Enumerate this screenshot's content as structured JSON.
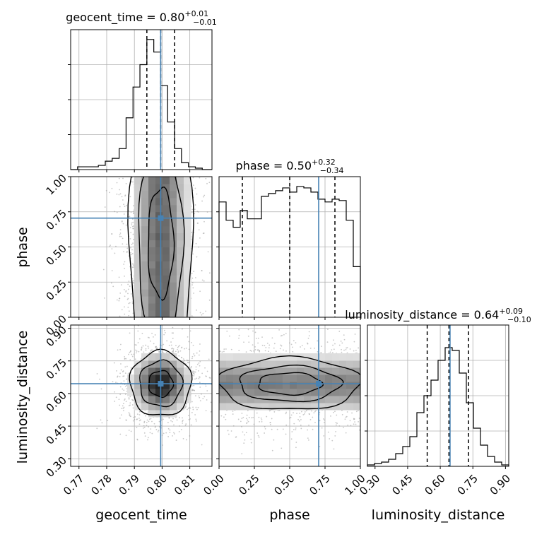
{
  "chart_data": {
    "type": "corner",
    "grid": true,
    "truth_color": "#4682b4",
    "parameters": [
      {
        "name": "geocent_time",
        "median": "0.80",
        "plus": "+0.01",
        "minus": "−0.01",
        "range": [
          0.767,
          0.818
        ],
        "ticks": [
          0.77,
          0.78,
          0.79,
          0.8,
          0.81
        ],
        "tick_labels": [
          "0.77",
          "0.78",
          "0.79",
          "0.80",
          "0.81"
        ],
        "truth": 0.7995,
        "quantiles": [
          0.7945,
          0.7995,
          0.8045
        ]
      },
      {
        "name": "phase",
        "median": "0.50",
        "plus": "+0.32",
        "minus": "−0.34",
        "range": [
          0.0,
          1.0
        ],
        "ticks": [
          0.0,
          0.25,
          0.5,
          0.75,
          1.0
        ],
        "tick_labels": [
          "0.00",
          "0.25",
          "0.50",
          "0.75",
          "1.00"
        ],
        "truth": 0.705,
        "quantiles": [
          0.165,
          0.5,
          0.82
        ]
      },
      {
        "name": "luminosity_distance",
        "median": "0.64",
        "plus": "+0.09",
        "minus": "−0.10",
        "range": [
          0.265,
          0.915
        ],
        "ticks": [
          0.3,
          0.45,
          0.6,
          0.75,
          0.9
        ],
        "tick_labels": [
          "0.30",
          "0.45",
          "0.60",
          "0.75",
          "0.90"
        ],
        "truth": 0.645,
        "quantiles": [
          0.54,
          0.64,
          0.73
        ]
      }
    ],
    "titles": [
      "geocent_time = 0.80",
      "phase = 0.50",
      "luminosity_distance = 0.64"
    ],
    "axis_labels": {
      "x": [
        "geocent_time",
        "phase",
        "luminosity_distance"
      ],
      "y": [
        "phase",
        "luminosity_distance"
      ]
    },
    "histograms": [
      {
        "param": "geocent_time",
        "bins": [
          0.767,
          0.7695,
          0.772,
          0.7745,
          0.777,
          0.7795,
          0.782,
          0.7845,
          0.787,
          0.7895,
          0.792,
          0.7945,
          0.797,
          0.7995,
          0.802,
          0.8045,
          0.807,
          0.8095,
          0.812,
          0.8145,
          0.818
        ],
        "counts": [
          0,
          0.02,
          0.02,
          0.02,
          0.03,
          0.06,
          0.08,
          0.15,
          0.37,
          0.59,
          0.75,
          0.93,
          0.84,
          0.6,
          0.34,
          0.15,
          0.05,
          0.02,
          0.01,
          0
        ]
      },
      {
        "param": "phase",
        "bins": [
          0.0,
          0.05,
          0.1,
          0.15,
          0.2,
          0.25,
          0.3,
          0.35,
          0.4,
          0.45,
          0.5,
          0.55,
          0.6,
          0.65,
          0.7,
          0.75,
          0.8,
          0.85,
          0.9,
          0.95,
          1.0
        ],
        "counts": [
          0.82,
          0.69,
          0.64,
          0.76,
          0.7,
          0.7,
          0.86,
          0.88,
          0.9,
          0.92,
          0.89,
          0.93,
          0.92,
          0.89,
          0.84,
          0.82,
          0.84,
          0.83,
          0.69,
          0.36
        ]
      },
      {
        "param": "luminosity_distance",
        "bins": [
          0.265,
          0.2975,
          0.33,
          0.3625,
          0.395,
          0.4275,
          0.46,
          0.4925,
          0.525,
          0.5575,
          0.59,
          0.6225,
          0.655,
          0.6875,
          0.72,
          0.7525,
          0.785,
          0.8175,
          0.85,
          0.8825,
          0.915
        ],
        "counts": [
          0.01,
          0.02,
          0.03,
          0.05,
          0.09,
          0.14,
          0.21,
          0.38,
          0.5,
          0.61,
          0.75,
          0.84,
          0.82,
          0.66,
          0.45,
          0.27,
          0.15,
          0.07,
          0.03,
          0.01
        ]
      }
    ],
    "joint_2d": [
      {
        "x": "geocent_time",
        "y": "phase",
        "center": [
          0.7995,
          0.53
        ],
        "sd": [
          0.0055,
          0.26
        ],
        "truth": [
          0.7995,
          0.705
        ]
      },
      {
        "x": "geocent_time",
        "y": "luminosity_distance",
        "center": [
          0.7995,
          0.645
        ],
        "sd": [
          0.0055,
          0.075
        ],
        "truth": [
          0.7995,
          0.645
        ]
      },
      {
        "x": "phase",
        "y": "luminosity_distance",
        "center": [
          0.5,
          0.645
        ],
        "sd": [
          0.28,
          0.075
        ],
        "truth": [
          0.705,
          0.645
        ]
      }
    ]
  }
}
